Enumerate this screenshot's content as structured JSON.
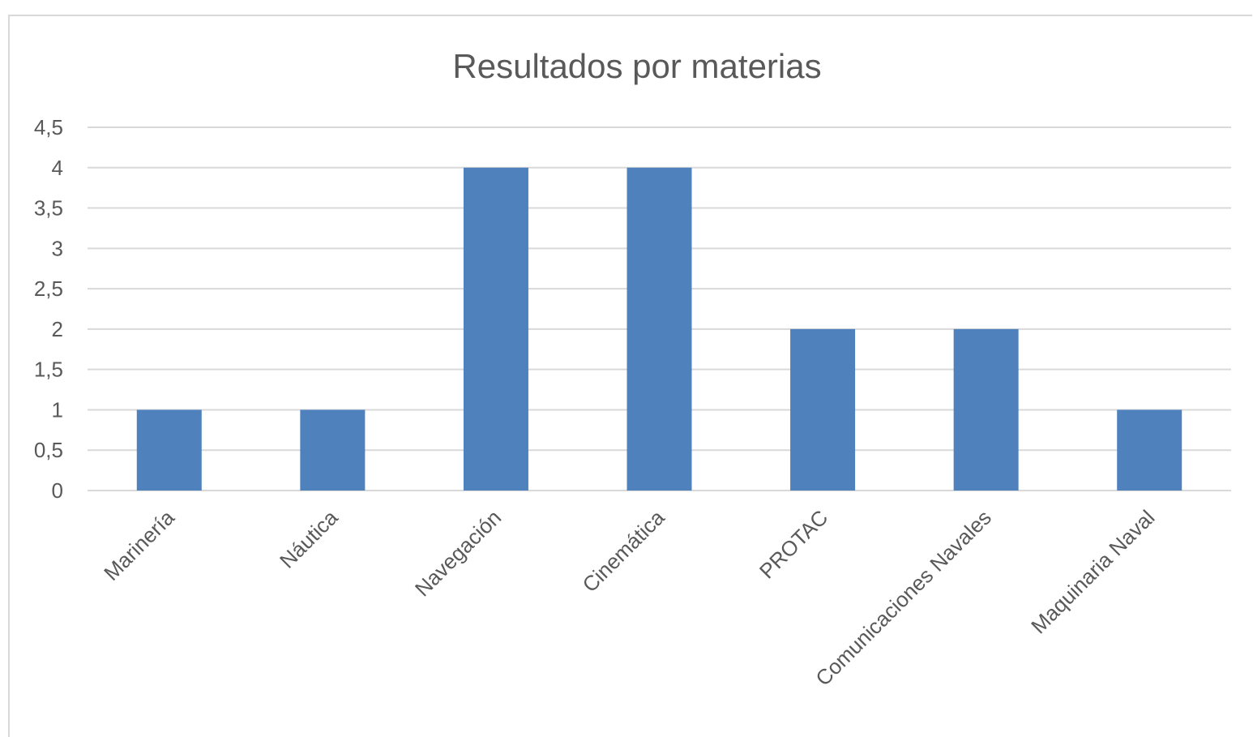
{
  "chart_data": {
    "type": "bar",
    "title": "Resultados por materias",
    "xlabel": "",
    "ylabel": "",
    "categories": [
      "Marinería",
      "Náutica",
      "Navegación",
      "Cinemática",
      "PROTAC",
      "Comunicaciones Navales",
      "Maquinaria Naval"
    ],
    "values": [
      1,
      1,
      4,
      4,
      2,
      2,
      1
    ],
    "ylim": [
      0,
      4.5
    ],
    "yticks": [
      "0",
      "0,5",
      "1",
      "1,5",
      "2",
      "2,5",
      "3",
      "3,5",
      "4",
      "4,5"
    ],
    "ytick_values": [
      0,
      0.5,
      1,
      1.5,
      2,
      2.5,
      3,
      3.5,
      4,
      4.5
    ],
    "grid": true,
    "legend": "none",
    "colors": {
      "bar": "#4f81bd",
      "grid": "#d9d9d9",
      "text": "#595959",
      "border": "#d9d9d9"
    }
  }
}
